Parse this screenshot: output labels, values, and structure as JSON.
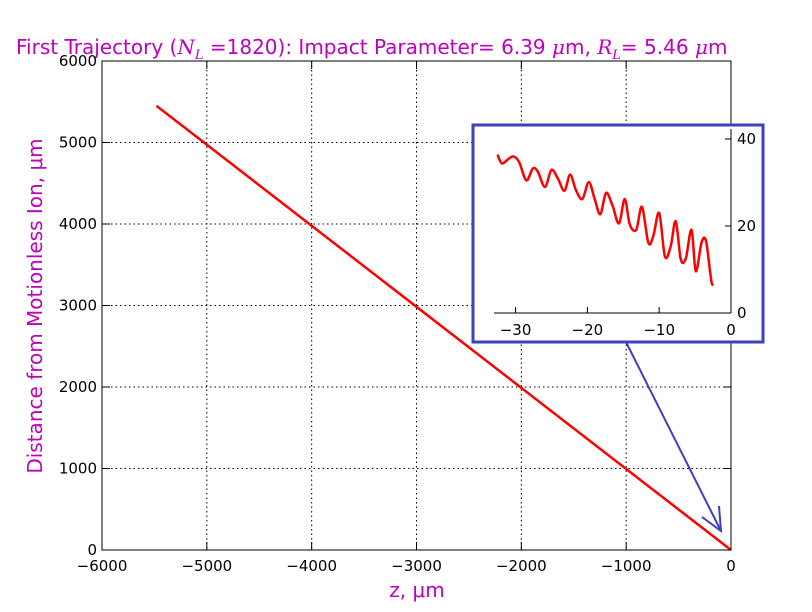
{
  "colors": {
    "title": "#bf00bf",
    "series": "#ff0000",
    "inset_frame": "#3f3fbf",
    "axis": "#000000"
  },
  "chart_data": [
    {
      "type": "line",
      "title_parts": {
        "prefix": "First Trajectory (",
        "nl_symbol": "N",
        "nl_sub": "L",
        "nl_eq": " =",
        "nl_value": "1820",
        "mid": "): Impact Parameter= 6.39 ",
        "mu1": "μ",
        "m1": "m, ",
        "rl_symbol": "R",
        "rl_sub": "L",
        "rl_eq": "= 5.46 ",
        "mu2": "μ",
        "m2": "m"
      },
      "xlabel": "z, μm",
      "ylabel": "Distance from Motionless Ion, μm",
      "xlim": [
        -6000,
        0
      ],
      "ylim": [
        0,
        6000
      ],
      "xticks": [
        -6000,
        -5000,
        -4000,
        -3000,
        -2000,
        -1000,
        0
      ],
      "xtick_labels": [
        "−6000",
        "−5000",
        "−4000",
        "−3000",
        "−2000",
        "−1000",
        "0"
      ],
      "yticks": [
        0,
        1000,
        2000,
        3000,
        4000,
        5000,
        6000
      ],
      "ytick_labels": [
        "0",
        "1000",
        "2000",
        "3000",
        "4000",
        "5000",
        "6000"
      ],
      "grid": true,
      "series": [
        {
          "x": [
            -5480,
            0
          ],
          "y": [
            5450,
            0
          ]
        }
      ],
      "annotation": "arrow from inset to the trajectory end near z = 0"
    },
    {
      "type": "line",
      "role": "inset",
      "xlim": [
        -33,
        0
      ],
      "ylim": [
        0,
        40
      ],
      "xticks": [
        -30,
        -20,
        -10,
        0
      ],
      "xtick_labels": [
        "−30",
        "−20",
        "−10",
        "0"
      ],
      "yticks": [
        0,
        20,
        40
      ],
      "ytick_labels": [
        "0",
        "20",
        "40"
      ],
      "grid": false,
      "series": [
        {
          "x": [
            -32.5,
            -32.1,
            -31.75,
            -31.0,
            -30.3,
            -29.5,
            -28.5,
            -27.6,
            -26.9,
            -25.9,
            -25.0,
            -24.1,
            -23.2,
            -22.4,
            -21.6,
            -20.7,
            -19.8,
            -19.0,
            -18.2,
            -17.4,
            -16.5,
            -15.6,
            -14.8,
            -14.1,
            -13.2,
            -12.4,
            -11.5,
            -10.8,
            -10.0,
            -9.2,
            -8.4,
            -7.7,
            -7.0,
            -6.3,
            -5.5,
            -4.9,
            -4.1,
            -3.5,
            -2.95,
            -2.7,
            -2.5
          ],
          "y": [
            36.4,
            34.8,
            34.4,
            35.4,
            36.0,
            34.7,
            30.5,
            33.2,
            32.5,
            29.0,
            32.9,
            30.9,
            28.1,
            31.8,
            28.3,
            26.2,
            30.1,
            26.3,
            22.7,
            27.6,
            24.7,
            20.6,
            26.2,
            20.4,
            19.1,
            24.4,
            16.1,
            17.8,
            23.0,
            13.0,
            15.3,
            21.1,
            12.4,
            12.5,
            19.1,
            9.6,
            16.2,
            16.7,
            10.0,
            7.0,
            6.3
          ]
        }
      ]
    }
  ]
}
